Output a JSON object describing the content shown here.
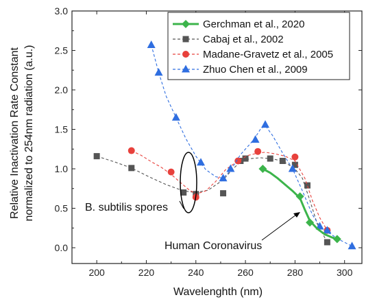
{
  "chart_data": {
    "type": "line",
    "title": "",
    "xlabel": "Wavelenghth (nm)",
    "ylabel": [
      "Relative Inactivation Rate Constant",
      "normalized to 254nm radiation (a.u.)"
    ],
    "xlim": [
      190,
      307
    ],
    "ylim": [
      -0.2,
      3.0
    ],
    "xticks": [
      200,
      220,
      240,
      260,
      280,
      300
    ],
    "yticks": [
      "0.0",
      "0.5",
      "1.0",
      "1.5",
      "2.0",
      "2.5",
      "3.0"
    ],
    "ytick_values": [
      0.0,
      0.5,
      1.0,
      1.5,
      2.0,
      2.5,
      3.0
    ],
    "legend_position": "top-right",
    "series": [
      {
        "name": "Gerchman et al., 2020",
        "color": "#3cb44b",
        "marker": "diamond",
        "line": "solid",
        "x": [
          267,
          282,
          286,
          297
        ],
        "y": [
          1.0,
          0.65,
          0.32,
          0.11
        ],
        "curve_x": [
          267,
          270,
          273,
          276,
          279,
          282,
          284,
          286,
          289,
          292,
          295,
          297
        ],
        "curve_y": [
          1.0,
          0.95,
          0.88,
          0.8,
          0.72,
          0.63,
          0.48,
          0.34,
          0.24,
          0.17,
          0.13,
          0.11
        ]
      },
      {
        "name": "Cabaj et al., 2002",
        "color": "#555555",
        "marker": "square",
        "line": "dashed",
        "x": [
          200,
          214,
          235,
          240,
          251,
          258,
          260,
          270,
          275,
          280,
          285,
          293
        ],
        "y": [
          1.16,
          1.01,
          0.7,
          0.68,
          0.69,
          1.1,
          1.13,
          1.13,
          1.1,
          1.05,
          0.79,
          0.07
        ],
        "curve_x": [
          200,
          207,
          214,
          221,
          228,
          235,
          240,
          245,
          251,
          255,
          258,
          262,
          266,
          270,
          275,
          280,
          283,
          286,
          289,
          293
        ],
        "curve_y": [
          1.16,
          1.09,
          1.01,
          0.9,
          0.8,
          0.72,
          0.7,
          0.73,
          0.86,
          1.0,
          1.09,
          1.13,
          1.14,
          1.13,
          1.1,
          1.0,
          0.88,
          0.6,
          0.3,
          0.07
        ]
      },
      {
        "name": "Madane-Gravetz et al., 2005",
        "color": "#e8413c",
        "marker": "circle",
        "line": "dashed",
        "x": [
          214,
          230,
          240,
          257,
          265,
          280,
          293
        ],
        "y": [
          1.23,
          0.96,
          0.64,
          1.1,
          1.22,
          1.15,
          0.22
        ],
        "curve_x": [
          214,
          218,
          222,
          226,
          230,
          234,
          237,
          240,
          244,
          248,
          252,
          257,
          261,
          265,
          268,
          272,
          276,
          280,
          284,
          287,
          290,
          293
        ],
        "curve_y": [
          1.23,
          1.17,
          1.09,
          1.02,
          0.93,
          0.82,
          0.74,
          0.68,
          0.72,
          0.84,
          0.99,
          1.1,
          1.17,
          1.2,
          1.21,
          1.19,
          1.16,
          1.1,
          0.88,
          0.6,
          0.38,
          0.22
        ]
      },
      {
        "name": "Zhuo Chen et al., 2009",
        "color": "#2f6ee0",
        "marker": "triangle",
        "line": "dashed",
        "x": [
          222,
          225,
          232,
          242,
          251,
          254,
          264,
          268,
          279,
          290,
          293,
          303
        ],
        "y": [
          2.57,
          2.22,
          1.65,
          1.08,
          0.88,
          1.0,
          1.37,
          1.56,
          1.0,
          0.27,
          0.22,
          0.02
        ],
        "curve_x": [
          222,
          225,
          228,
          232,
          236,
          240,
          244,
          248,
          251,
          254,
          258,
          262,
          264,
          266,
          268,
          271,
          275,
          279,
          283,
          287,
          290,
          293,
          298,
          303
        ],
        "curve_y": [
          2.57,
          2.22,
          1.92,
          1.65,
          1.38,
          1.16,
          0.99,
          0.9,
          0.88,
          0.98,
          1.18,
          1.32,
          1.4,
          1.5,
          1.55,
          1.42,
          1.2,
          1.0,
          0.72,
          0.42,
          0.27,
          0.2,
          0.1,
          0.02
        ]
      }
    ],
    "annotations": [
      {
        "text": "B. subtilis spores",
        "target_x": 240,
        "target_y": 0.75
      },
      {
        "text": "Human Coronavirus",
        "target_x": 286,
        "target_y": 0.32
      }
    ]
  }
}
